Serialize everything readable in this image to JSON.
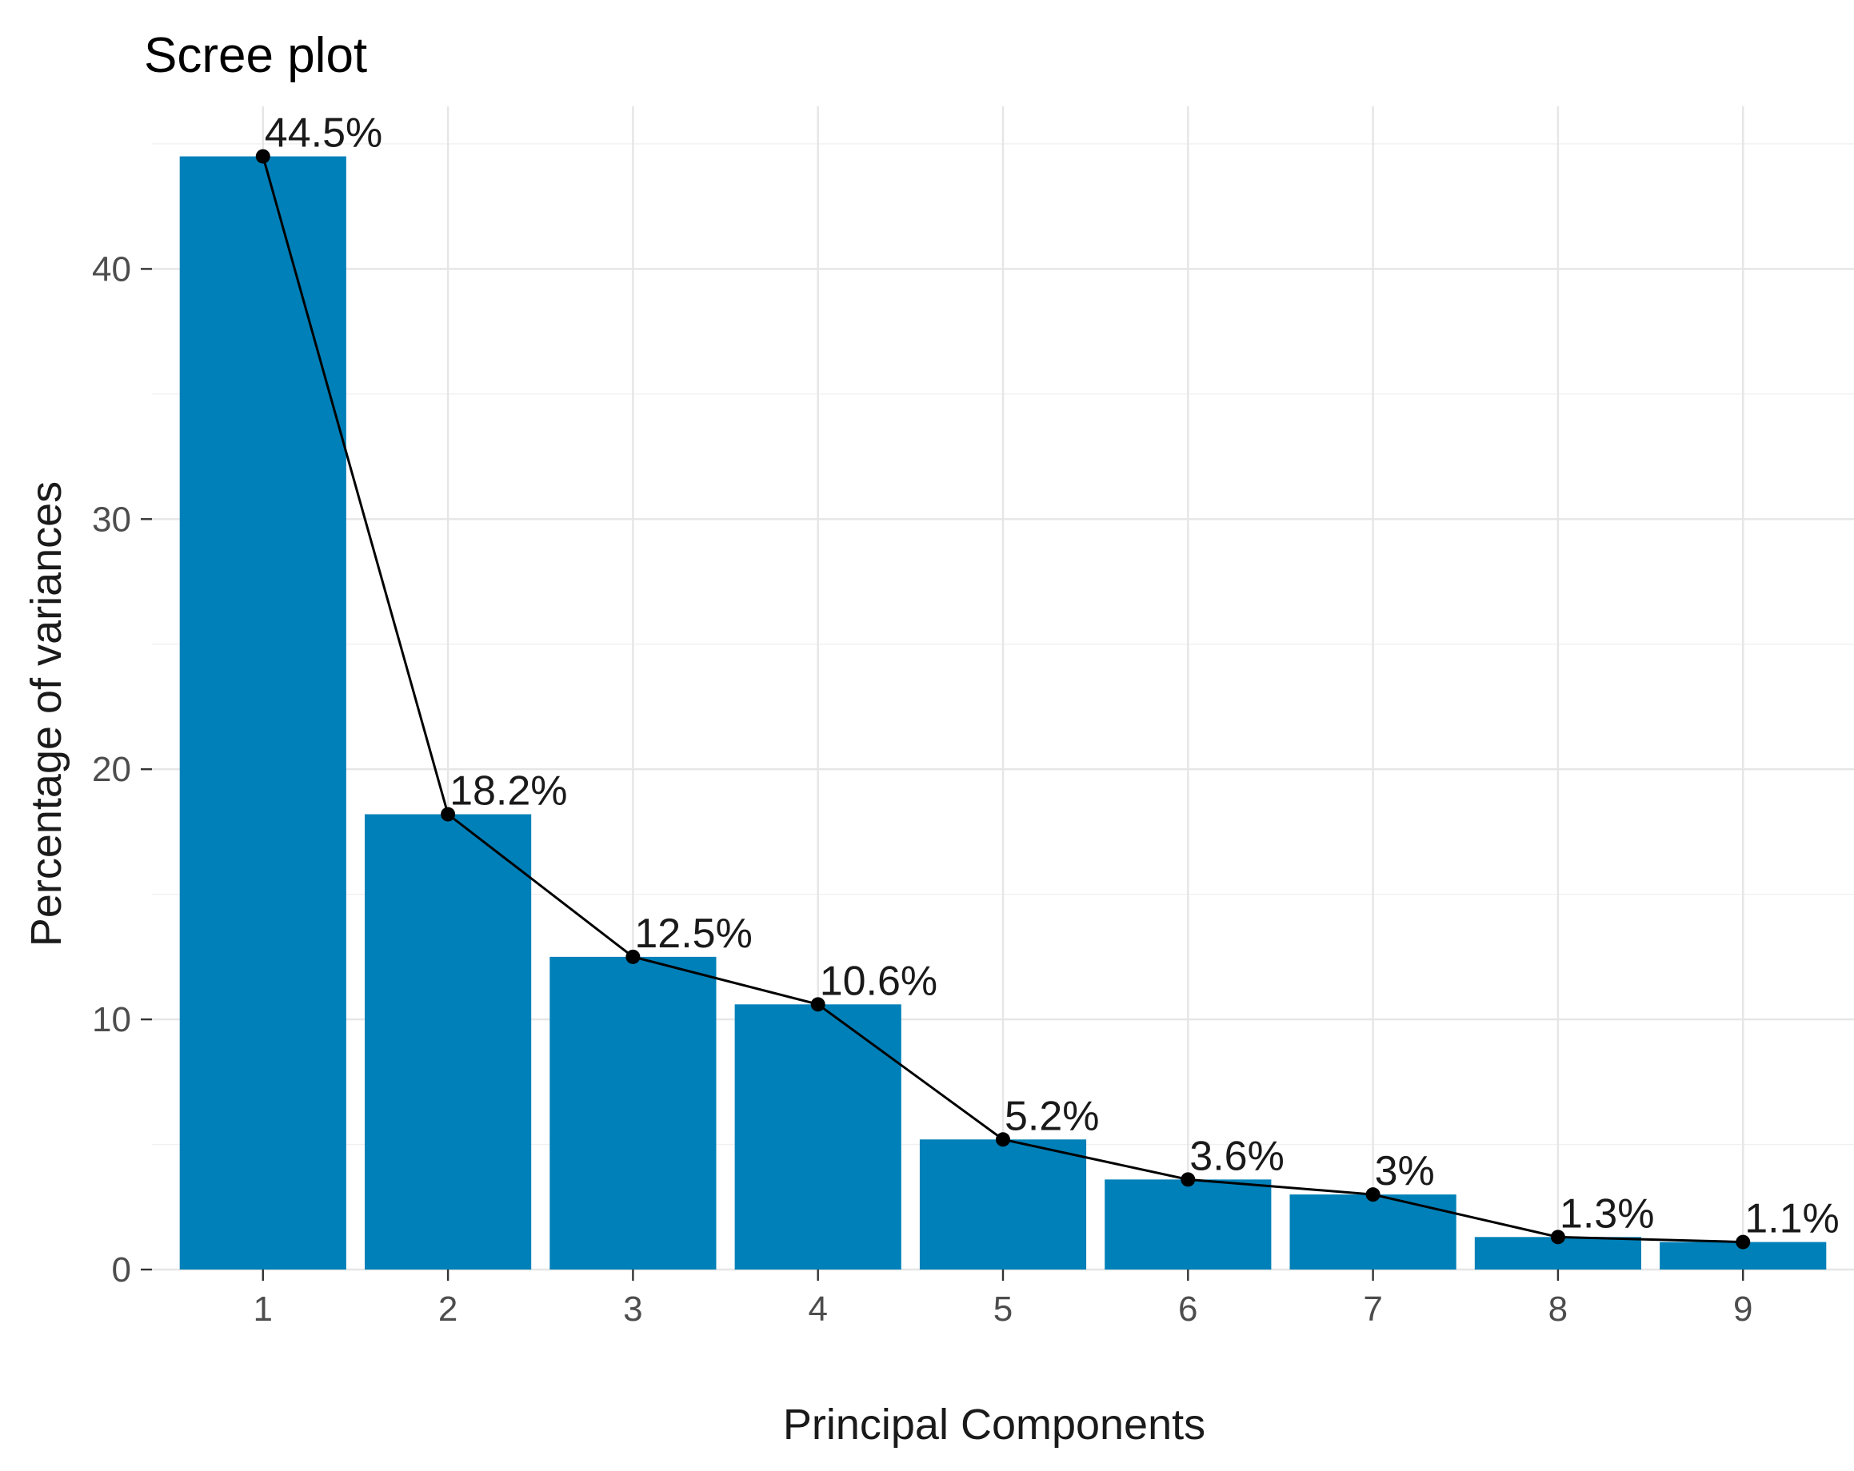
{
  "chart_data": {
    "type": "bar",
    "title": "Scree plot",
    "xlabel": "Principal Components",
    "ylabel": "Percentage of variances",
    "categories": [
      "1",
      "2",
      "3",
      "4",
      "5",
      "6",
      "7",
      "8",
      "9"
    ],
    "values": [
      44.5,
      18.2,
      12.5,
      10.6,
      5.2,
      3.6,
      3.0,
      1.3,
      1.1
    ],
    "data_labels": [
      "44.5%",
      "18.2%",
      "12.5%",
      "10.6%",
      "5.2%",
      "3.6%",
      "3%",
      "1.3%",
      "1.1%"
    ],
    "y_ticks": [
      "0",
      "10",
      "20",
      "30",
      "40"
    ],
    "ylim": [
      0,
      46.5
    ],
    "grid": true,
    "overlay_line": true,
    "colors": {
      "bar": "#0080b8",
      "line": "#000000"
    }
  }
}
